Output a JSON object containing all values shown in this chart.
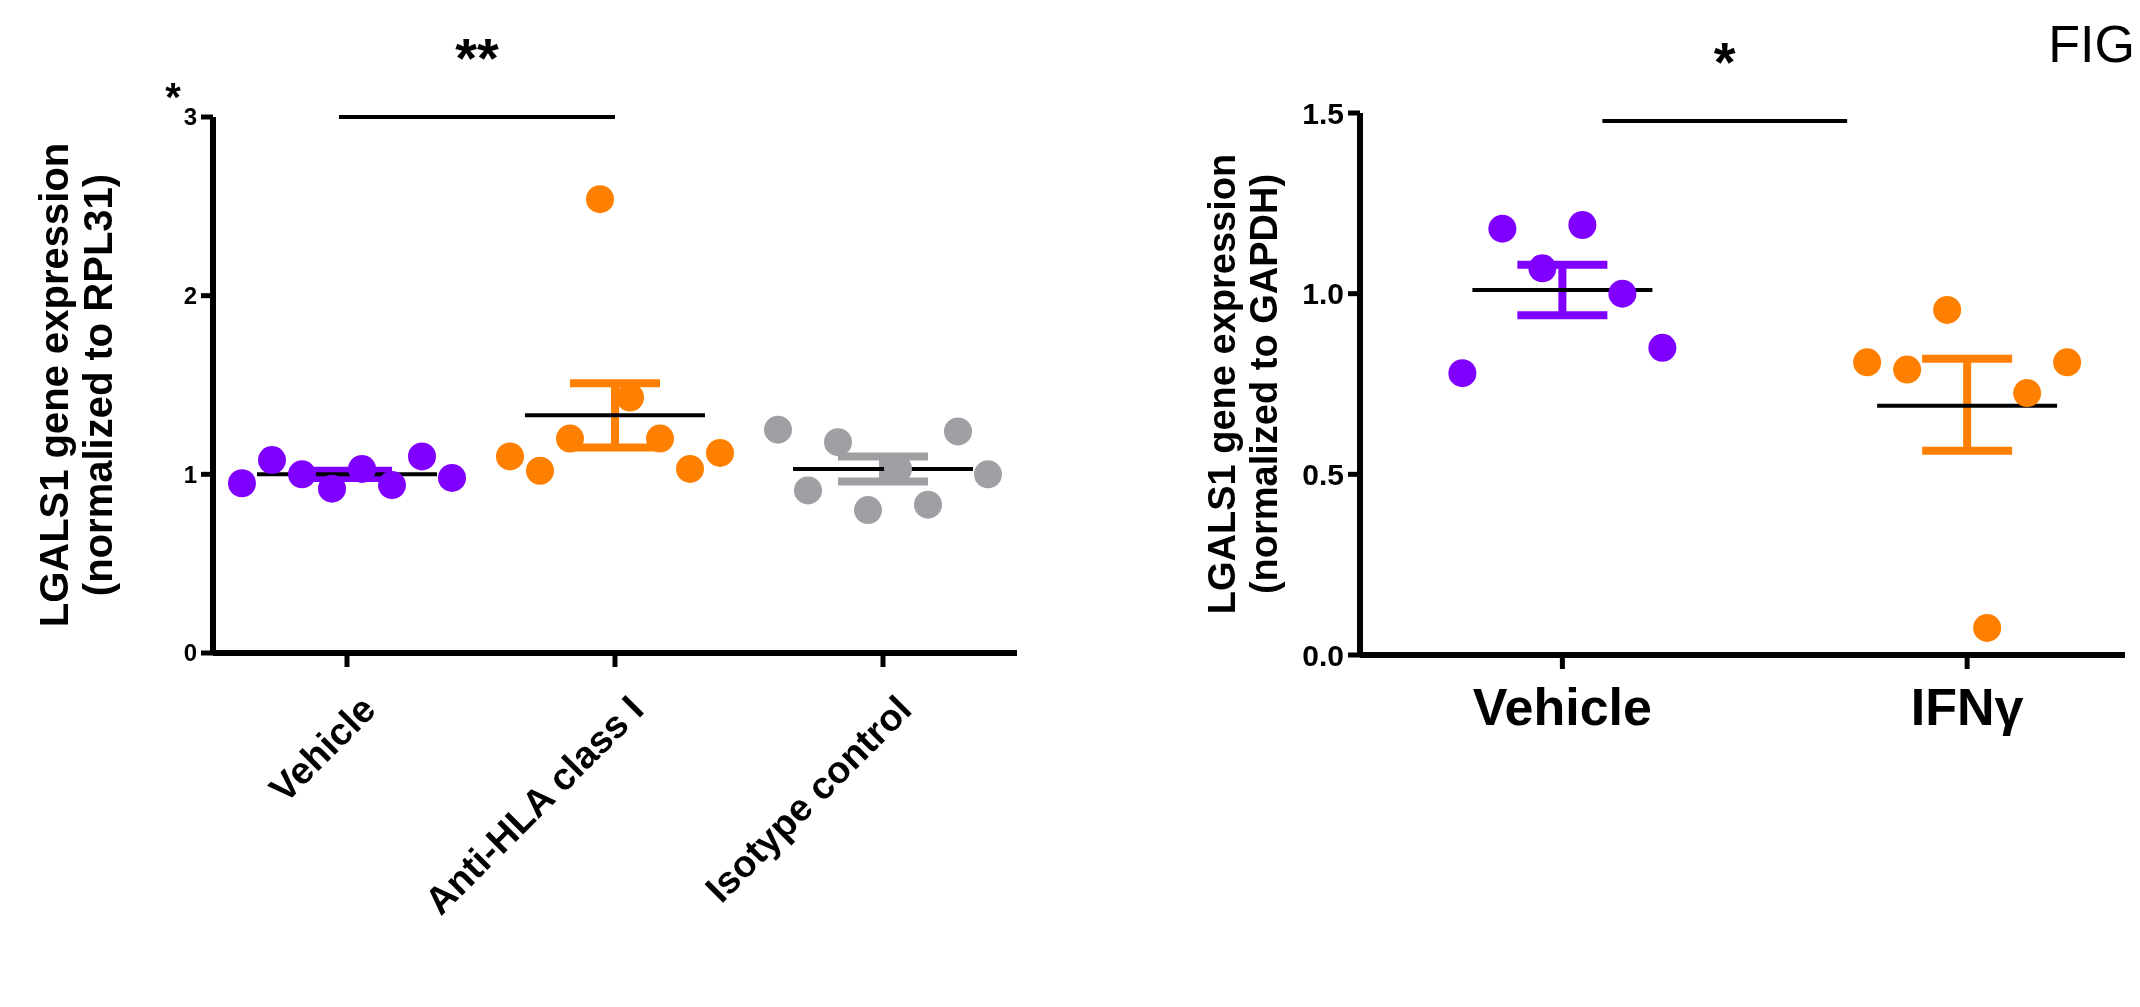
{
  "chart_data": [
    {
      "type": "scatter",
      "ylabel": "LGALS1 gene expression\n(normalized to RPL31)",
      "categories": [
        "Vehicle",
        "Anti-HLA class I",
        "Isotype control"
      ],
      "ylim": [
        0,
        3
      ],
      "yticks": [
        0,
        1,
        2,
        3
      ],
      "grid": false,
      "tick_labels": true,
      "annotations": [
        "*",
        "**"
      ],
      "series": [
        {
          "x": [
            "Vehicle",
            "Vehicle",
            "Vehicle",
            "Vehicle",
            "Vehicle",
            "Vehicle",
            "Vehicle",
            "Vehicle"
          ],
          "values": [
            0.95,
            1.08,
            1.0,
            0.92,
            1.03,
            0.94,
            1.1,
            0.98
          ],
          "color": "#8000ff",
          "marker": "circle"
        },
        {
          "x": [
            "Anti-HLA class I",
            "Anti-HLA class I",
            "Anti-HLA class I",
            "Anti-HLA class I",
            "Anti-HLA class I",
            "Anti-HLA class I",
            "Anti-HLA class I",
            "Anti-HLA class I"
          ],
          "values": [
            1.1,
            1.02,
            1.2,
            2.54,
            1.43,
            1.2,
            1.03,
            1.12
          ],
          "color": "#ff8000",
          "marker": "circle"
        },
        {
          "x": [
            "Isotype control",
            "Isotype control",
            "Isotype control",
            "Isotype control",
            "Isotype control",
            "Isotype control",
            "Isotype control",
            "Isotype control"
          ],
          "values": [
            1.25,
            0.91,
            1.18,
            0.8,
            1.03,
            0.83,
            1.24,
            1.0
          ],
          "color": "#a0a0a4",
          "marker": "circle"
        },
        {
          "type": "box",
          "x": [
            "Vehicle",
            "Anti-HLA class I",
            "Isotype control"
          ],
          "boxes": [
            {
              "low": 0.98,
              "q1": 1.0,
              "median": 1.0,
              "q3": 1.0,
              "high": 1.02
            },
            {
              "low": 1.15,
              "q1": 1.33,
              "median": 1.33,
              "q3": 1.33,
              "high": 1.51
            },
            {
              "low": 0.96,
              "q1": 1.03,
              "median": 1.03,
              "q3": 1.03,
              "high": 1.1
            }
          ],
          "color": "#000000"
        }
      ]
    },
    {
      "type": "scatter",
      "ylabel": "LGALS1 gene expression\n(normalized to GAPDH)",
      "categories": [
        "Vehicle",
        "IFNγ"
      ],
      "ylim": [
        0,
        1.5
      ],
      "yticks": [
        {
          "value": 0,
          "label": "0.0"
        },
        0.5,
        {
          "value": 1,
          "label": "1.0"
        },
        1.5
      ],
      "grid": false,
      "tick_labels": true,
      "annotations": [
        "*",
        "FIG"
      ],
      "series": [
        {
          "x": [
            "Vehicle",
            "Vehicle",
            "Vehicle",
            "Vehicle",
            "Vehicle",
            "Vehicle"
          ],
          "values": [
            0.78,
            1.18,
            1.07,
            1.19,
            1.0,
            0.85
          ],
          "color": "#8000ff",
          "marker": "circle"
        },
        {
          "x": [
            "IFNγ",
            "IFNγ",
            "IFNγ",
            "IFNγ",
            "IFNγ",
            "IFNγ"
          ],
          "values": [
            0.81,
            0.79,
            0.955,
            0.075,
            0.725,
            0.81
          ],
          "color": "#ff8000",
          "marker": "circle"
        },
        {
          "type": "box",
          "x": [
            "Vehicle",
            "IFNγ"
          ],
          "boxes": [
            {
              "low": 0.94,
              "q1": 1.01,
              "median": 1.01,
              "q3": 1.01,
              "high": 1.08
            },
            {
              "low": 0.565,
              "q1": 0.69,
              "median": 0.69,
              "q3": 0.69,
              "high": 0.82
            }
          ],
          "color": "#000000"
        }
      ]
    }
  ]
}
